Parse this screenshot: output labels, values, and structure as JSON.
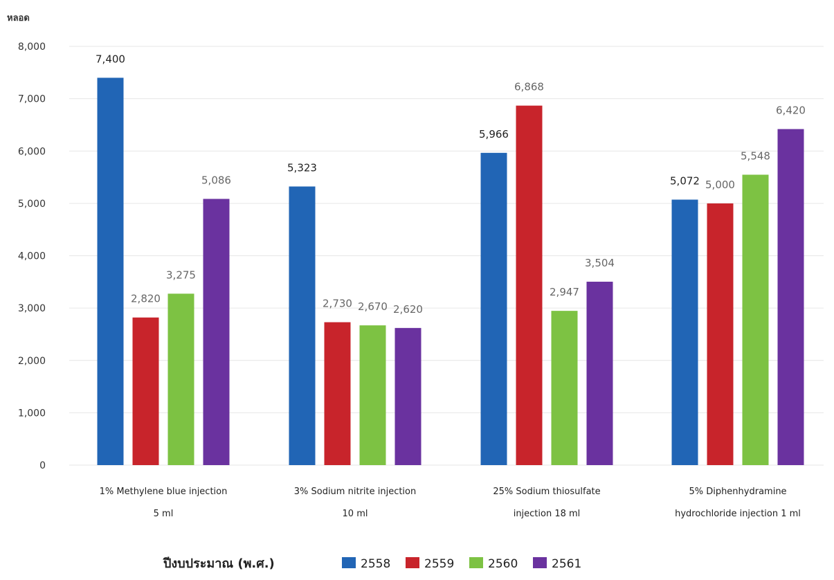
{
  "chart_data": {
    "type": "bar",
    "ylabel": "หลอด",
    "ylim": [
      0,
      8000
    ],
    "yticks": [
      "0",
      "1,000",
      "2,000",
      "3,000",
      "4,000",
      "5,000",
      "6,000",
      "7,000",
      "8,000"
    ],
    "grid": true,
    "categories": [
      [
        "1% Methylene blue injection",
        "5 ml"
      ],
      [
        "3% Sodium nitrite injection",
        "10 ml"
      ],
      [
        "25% Sodium thiosulfate",
        "injection 18 ml"
      ],
      [
        "5% Diphenhydramine",
        "hydrochloride injection  1 ml"
      ]
    ],
    "series": [
      {
        "name": "2558",
        "color": "#2165b5",
        "values": [
          7400,
          5323,
          5966,
          5072
        ],
        "labels": [
          "7,400",
          "5,323",
          "5,966",
          "5,072"
        ]
      },
      {
        "name": "2559",
        "color": "#c8242b",
        "values": [
          2820,
          2730,
          6868,
          5000
        ],
        "labels": [
          "2,820",
          "2,730",
          "6,868",
          "5,000"
        ]
      },
      {
        "name": "2560",
        "color": "#7dc243",
        "values": [
          3275,
          2670,
          2947,
          5548
        ],
        "labels": [
          "3,275",
          "2,670",
          "2,947",
          "5,548"
        ]
      },
      {
        "name": "2561",
        "color": "#6a329f",
        "values": [
          5086,
          2620,
          3504,
          6420
        ],
        "labels": [
          "5,086",
          "2,620",
          "3,504",
          "6,420"
        ]
      }
    ],
    "label_colors": [
      "#222222",
      "#666666",
      "#666666",
      "#666666"
    ],
    "legend": {
      "title": "ปีงบประมาณ (พ.ศ.)",
      "position": "bottom"
    }
  }
}
